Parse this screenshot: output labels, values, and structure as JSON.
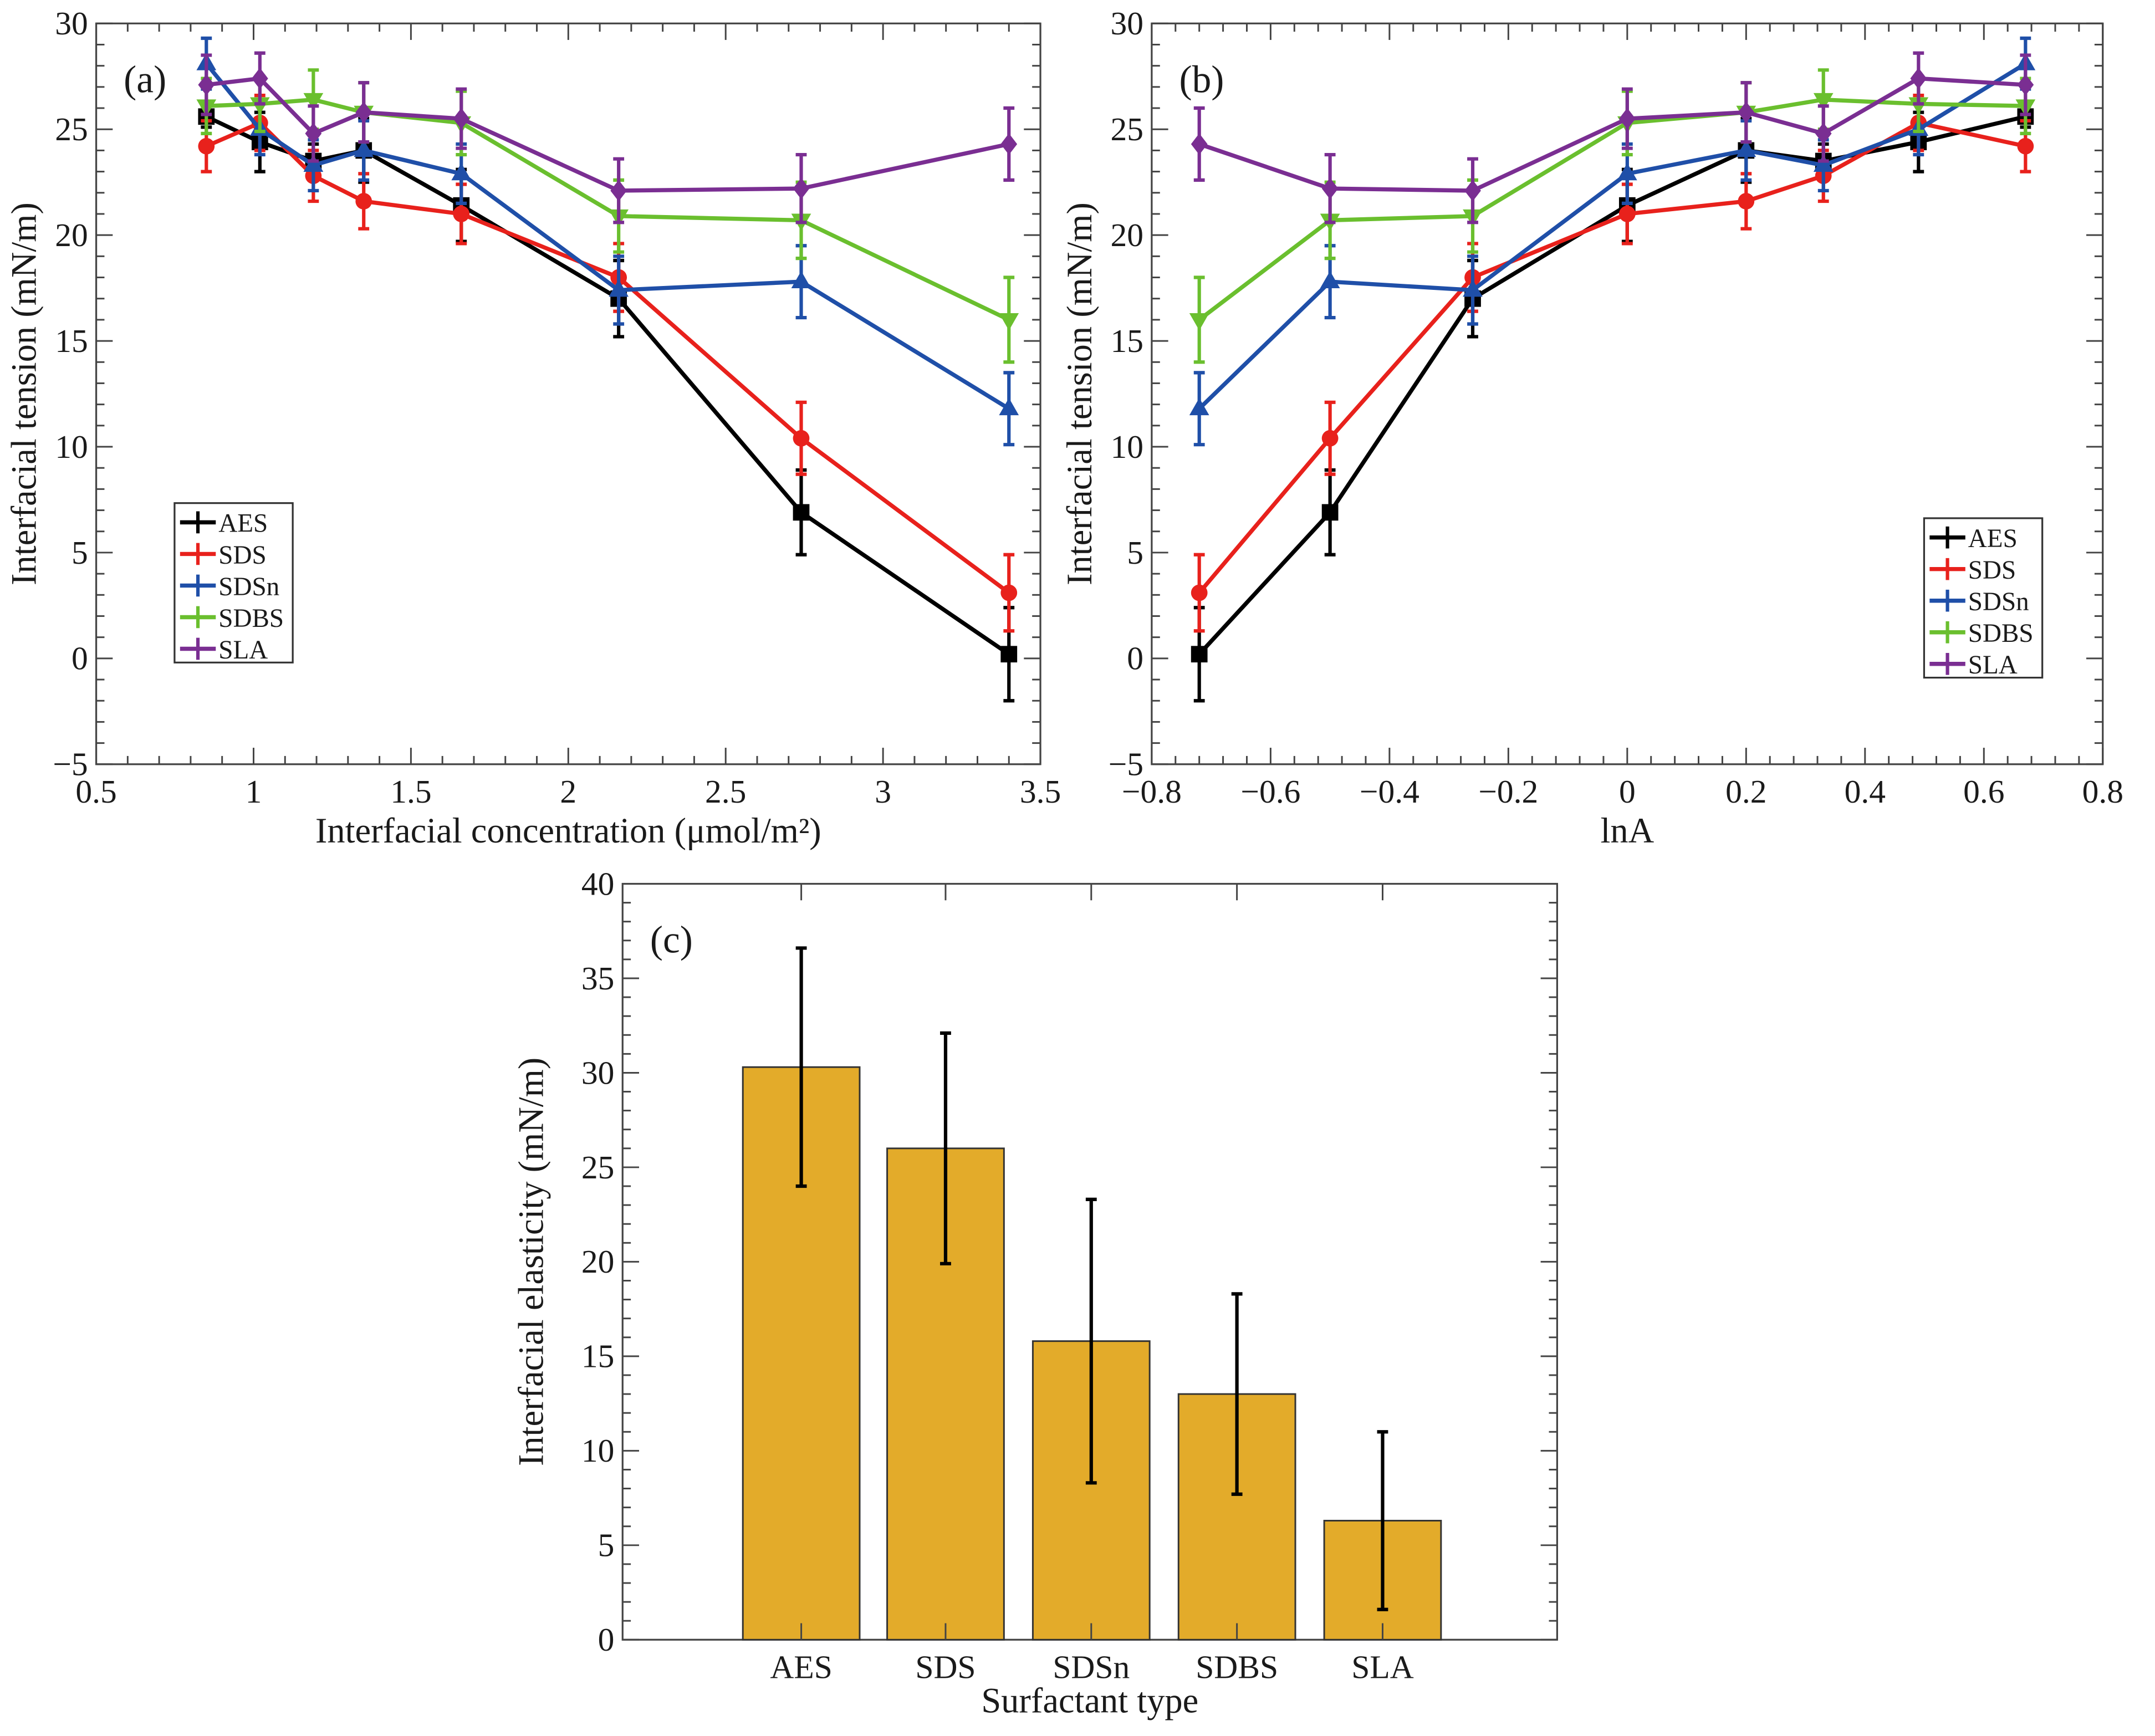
{
  "colors": {
    "AES": "#000000",
    "SDS": "#e8211c",
    "SDSn": "#1f4fa8",
    "SDBS": "#6abf2e",
    "SLA": "#7a2e92",
    "bar": "#e3ab2a"
  },
  "chart_data": [
    {
      "type": "line",
      "panel_label": "(a)",
      "xlabel": "Interfacial concentration (μmol/m²)",
      "ylabel": "Interfacial tension (mN/m)",
      "xlim": [
        0.5,
        3.5
      ],
      "ylim": [
        -5,
        30
      ],
      "xticks": [
        "0.5",
        "1",
        "1.5",
        "2",
        "2.5",
        "3",
        "3.5"
      ],
      "yticks": [
        "−5",
        "0",
        "5",
        "10",
        "15",
        "20",
        "25",
        "30"
      ],
      "legend_position": "lower-left",
      "x": [
        0.85,
        1.02,
        1.19,
        1.35,
        1.66,
        2.16,
        2.74,
        3.4
      ],
      "series": [
        {
          "name": "AES",
          "marker": "square",
          "values": [
            25.6,
            24.4,
            23.5,
            24.0,
            21.4,
            17.0,
            6.9,
            0.2
          ],
          "errors": [
            0.5,
            1.4,
            0.8,
            1.5,
            1.7,
            1.8,
            2.0,
            2.2
          ]
        },
        {
          "name": "SDS",
          "marker": "circle",
          "values": [
            24.2,
            25.3,
            22.8,
            21.6,
            21.0,
            18.0,
            10.4,
            3.1
          ],
          "errors": [
            1.2,
            1.3,
            1.2,
            1.3,
            1.4,
            1.6,
            1.7,
            1.8
          ]
        },
        {
          "name": "SDSn",
          "marker": "triangle-up",
          "values": [
            28.1,
            25.0,
            23.3,
            24.0,
            22.9,
            17.4,
            17.8,
            11.8
          ],
          "errors": [
            1.2,
            1.2,
            1.2,
            1.4,
            1.4,
            1.6,
            1.7,
            1.7
          ]
        },
        {
          "name": "SDBS",
          "marker": "triangle-down",
          "values": [
            26.1,
            26.2,
            26.4,
            25.8,
            25.3,
            20.9,
            20.7,
            16.0
          ],
          "errors": [
            1.3,
            1.3,
            1.4,
            1.4,
            1.5,
            1.7,
            1.8,
            2.0
          ]
        },
        {
          "name": "SLA",
          "marker": "diamond",
          "values": [
            27.1,
            27.4,
            24.8,
            25.8,
            25.5,
            22.1,
            22.2,
            24.3
          ],
          "errors": [
            1.4,
            1.2,
            1.3,
            1.4,
            1.4,
            1.5,
            1.6,
            1.7
          ]
        }
      ]
    },
    {
      "type": "line",
      "panel_label": "(b)",
      "xlabel": "lnA",
      "ylabel": "Interfacial tension (mN/m)",
      "xlim": [
        -0.8,
        0.8
      ],
      "ylim": [
        -5,
        30
      ],
      "xticks": [
        "−0.8",
        "−0.6",
        "−0.4",
        "−0.2",
        "0",
        "0.2",
        "0.4",
        "0.6",
        "0.8"
      ],
      "yticks": [
        "−5",
        "0",
        "5",
        "10",
        "15",
        "20",
        "25",
        "30"
      ],
      "legend_position": "lower-right",
      "x": [
        -0.72,
        -0.5,
        -0.26,
        0.0,
        0.2,
        0.33,
        0.49,
        0.67
      ],
      "series": [
        {
          "name": "AES",
          "marker": "square",
          "values": [
            0.2,
            6.9,
            17.0,
            21.4,
            24.0,
            23.5,
            24.4,
            25.6
          ],
          "errors": [
            2.2,
            2.0,
            1.8,
            1.7,
            1.5,
            0.8,
            1.4,
            0.5
          ]
        },
        {
          "name": "SDS",
          "marker": "circle",
          "values": [
            3.1,
            10.4,
            18.0,
            21.0,
            21.6,
            22.8,
            25.3,
            24.2
          ],
          "errors": [
            1.8,
            1.7,
            1.6,
            1.4,
            1.3,
            1.2,
            1.3,
            1.2
          ]
        },
        {
          "name": "SDSn",
          "marker": "triangle-up",
          "values": [
            11.8,
            17.8,
            17.4,
            22.9,
            24.0,
            23.3,
            25.0,
            28.1
          ],
          "errors": [
            1.7,
            1.7,
            1.6,
            1.4,
            1.4,
            1.2,
            1.2,
            1.2
          ]
        },
        {
          "name": "SDBS",
          "marker": "triangle-down",
          "values": [
            16.0,
            20.7,
            20.9,
            25.3,
            25.8,
            26.4,
            26.2,
            26.1
          ],
          "errors": [
            2.0,
            1.8,
            1.7,
            1.5,
            1.4,
            1.4,
            1.3,
            1.3
          ]
        },
        {
          "name": "SLA",
          "marker": "diamond",
          "values": [
            24.3,
            22.2,
            22.1,
            25.5,
            25.8,
            24.8,
            27.4,
            27.1
          ],
          "errors": [
            1.7,
            1.6,
            1.5,
            1.4,
            1.4,
            1.3,
            1.2,
            1.4
          ]
        }
      ]
    },
    {
      "type": "bar",
      "panel_label": "(c)",
      "xlabel": "Surfactant type",
      "ylabel": "Interfacial elasticity (mN/m)",
      "ylim": [
        0,
        40
      ],
      "yticks": [
        "0",
        "5",
        "10",
        "15",
        "20",
        "25",
        "30",
        "35",
        "40"
      ],
      "categories": [
        "AES",
        "SDS",
        "SDSn",
        "SDBS",
        "SLA"
      ],
      "values": [
        30.3,
        26.0,
        15.8,
        13.0,
        6.3
      ],
      "errors": [
        6.3,
        6.1,
        7.5,
        5.3,
        4.7
      ]
    }
  ]
}
